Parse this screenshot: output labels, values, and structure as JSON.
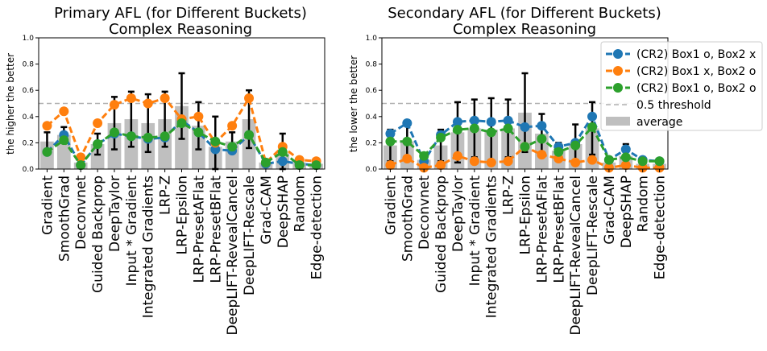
{
  "chart_data": [
    {
      "type": "bar+line",
      "title": "Primary AFL (for Different Buckets)",
      "subtitle": "Complex Reasoning",
      "xlabel": "",
      "ylabel": "the higher the better",
      "ylim": [
        0,
        1.0
      ],
      "yticks": [
        "0.0",
        "0.2",
        "0.4",
        "0.6",
        "0.8",
        "1.0"
      ],
      "threshold": 0.5,
      "categories": [
        "Gradient",
        "SmoothGrad",
        "Deconvnet",
        "Guided Backprop",
        "DeepTaylor",
        "Input * Gradient",
        "Integrated Gradients",
        "LRP-Z",
        "LRP-Epsilon",
        "LRP-PresetAFlat",
        "LRP-PresetBFlat",
        "DeepLIFT-RevealCancel",
        "DeepLIFT-Rescale",
        "Grad-CAM",
        "DeepSHAP",
        "Random",
        "Edge-detection"
      ],
      "average": {
        "values": [
          0.21,
          0.26,
          0.05,
          0.19,
          0.35,
          0.38,
          0.35,
          0.38,
          0.48,
          0.33,
          0.17,
          0.21,
          0.38,
          0.05,
          0.12,
          0.05,
          0.04
        ],
        "err": [
          0.07,
          0.06,
          0.01,
          0.08,
          0.2,
          0.21,
          0.22,
          0.21,
          0.25,
          0.18,
          0.23,
          0.07,
          0.22,
          0.01,
          0.15,
          0.01,
          0.01
        ]
      },
      "series": [
        {
          "name": "(CR2) Box1 o, Box2 x",
          "values": [
            0.13,
            0.26,
            0.03,
            0.19,
            0.27,
            0.25,
            0.23,
            0.24,
            0.37,
            0.28,
            0.15,
            0.14,
            0.26,
            0.04,
            0.06,
            0.04,
            0.03
          ]
        },
        {
          "name": "(CR2) Box1 x, Box2 o",
          "values": [
            0.33,
            0.44,
            0.09,
            0.35,
            0.49,
            0.54,
            0.5,
            0.54,
            0.38,
            0.4,
            0.2,
            0.33,
            0.54,
            0.05,
            0.17,
            0.07,
            0.06
          ]
        },
        {
          "name": "(CR2) Box1 o, Box2 o",
          "values": [
            0.13,
            0.22,
            0.03,
            0.19,
            0.28,
            0.25,
            0.24,
            0.25,
            0.35,
            0.28,
            0.21,
            0.17,
            0.26,
            0.05,
            0.13,
            0.03,
            0.03
          ]
        }
      ]
    },
    {
      "type": "bar+line",
      "title": "Secondary AFL (for Different Buckets)",
      "subtitle": "Complex Reasoning",
      "xlabel": "",
      "ylabel": "the lower the better",
      "ylim": [
        0,
        1.0
      ],
      "yticks": [
        "0.0",
        "0.2",
        "0.4",
        "0.6",
        "0.8",
        "1.0"
      ],
      "threshold": 0.5,
      "categories": [
        "Gradient",
        "SmoothGrad",
        "Deconvnet",
        "Guided Backprop",
        "DeepTaylor",
        "Input * Gradient",
        "Integrated Gradients",
        "LRP-Z",
        "LRP-Epsilon",
        "LRP-PresetAFlat",
        "LRP-PresetBFlat",
        "DeepLIFT-RevealCancel",
        "DeepLIFT-Rescale",
        "Grad-CAM",
        "DeepSHAP",
        "Random",
        "Edge-detection"
      ],
      "average": {
        "values": [
          0.18,
          0.21,
          0.07,
          0.18,
          0.28,
          0.31,
          0.3,
          0.31,
          0.43,
          0.27,
          0.14,
          0.19,
          0.31,
          0.05,
          0.1,
          0.04,
          0.04
        ],
        "err": [
          0.12,
          0.13,
          0.02,
          0.12,
          0.23,
          0.22,
          0.24,
          0.22,
          0.3,
          0.15,
          0.06,
          0.15,
          0.2,
          0.02,
          0.09,
          0.02,
          0.02
        ]
      },
      "series": [
        {
          "name": "(CR2) Box1 o, Box2 x",
          "values": [
            0.27,
            0.35,
            0.06,
            0.26,
            0.36,
            0.37,
            0.36,
            0.37,
            0.32,
            0.33,
            0.17,
            0.2,
            0.4,
            0.07,
            0.15,
            0.07,
            0.06
          ]
        },
        {
          "name": "(CR2) Box1 x, Box2 o",
          "values": [
            0.03,
            0.08,
            0.01,
            0.03,
            0.1,
            0.06,
            0.05,
            0.06,
            0.17,
            0.11,
            0.08,
            0.05,
            0.07,
            0.01,
            0.03,
            0.01,
            0.01
          ]
        },
        {
          "name": "(CR2) Box1 o, Box2 o",
          "values": [
            0.21,
            0.21,
            0.1,
            0.24,
            0.3,
            0.31,
            0.28,
            0.31,
            0.17,
            0.23,
            0.13,
            0.18,
            0.32,
            0.07,
            0.09,
            0.06,
            0.06
          ]
        }
      ]
    }
  ],
  "legend": {
    "placement": "right of second plot, top",
    "entries": [
      "(CR2) Box1 o, Box2 x",
      "(CR2) Box1 x, Box2 o",
      "(CR2) Box1 o, Box2 o",
      "0.5 threshold",
      "average"
    ]
  },
  "colors": {
    "series": [
      "#1f77b4",
      "#ff7f0e",
      "#2ca02c"
    ],
    "bar": "#bfbfbf",
    "threshold": "#b0b0b0",
    "error": "#000000"
  }
}
